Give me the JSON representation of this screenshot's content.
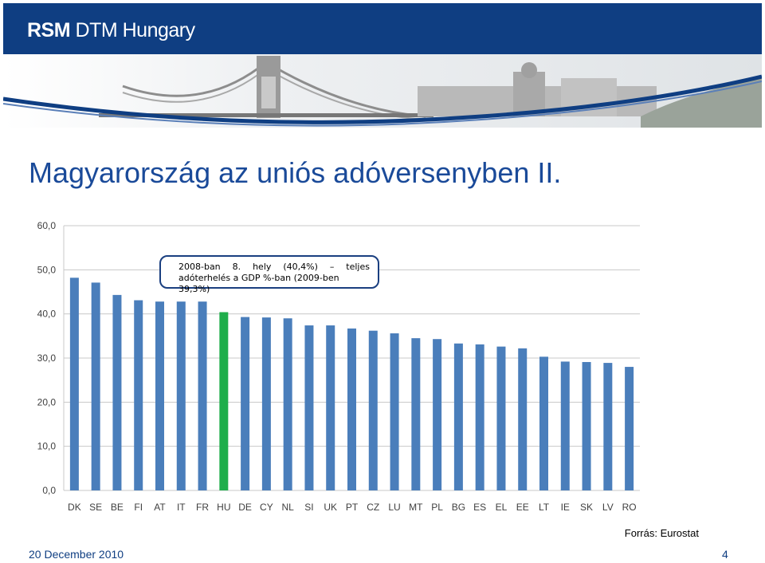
{
  "header": {
    "brand_bold": "RSM",
    "brand_rest": " DTM Hungary"
  },
  "slide": {
    "title": "Magyarország az uniós adóversenyben II."
  },
  "callout": {
    "line1": "2008-ban 8. hely (40,4%) – teljes",
    "line2": "adóterhelés a GDP %-ban (2009-ben 39,3%)"
  },
  "chart_data": {
    "type": "bar",
    "categories": [
      "DK",
      "SE",
      "BE",
      "FI",
      "AT",
      "IT",
      "FR",
      "HU",
      "DE",
      "CY",
      "NL",
      "SI",
      "UK",
      "PT",
      "CZ",
      "LU",
      "MT",
      "PL",
      "BG",
      "ES",
      "EL",
      "EE",
      "LT",
      "IE",
      "SK",
      "LV",
      "RO"
    ],
    "values": [
      48.2,
      47.1,
      44.3,
      43.1,
      42.8,
      42.8,
      42.8,
      40.4,
      39.3,
      39.2,
      39.0,
      37.4,
      37.4,
      36.7,
      36.2,
      35.6,
      34.5,
      34.3,
      33.3,
      33.1,
      32.6,
      32.2,
      30.3,
      29.2,
      29.1,
      28.9,
      28.0
    ],
    "yticks": [
      "60,0",
      "50,0",
      "40,0",
      "30,0",
      "20,0",
      "10,0",
      "0,0"
    ],
    "ylim": [
      0,
      60
    ],
    "highlight_category": "HU",
    "colors": {
      "bar": "#4a7ebb",
      "highlight": "#1fae4b",
      "grid": "#c8c8c8"
    },
    "grid": true
  },
  "source": "Forrás: Eurostat",
  "footer": {
    "date": "20 December 2010",
    "page": "4"
  }
}
